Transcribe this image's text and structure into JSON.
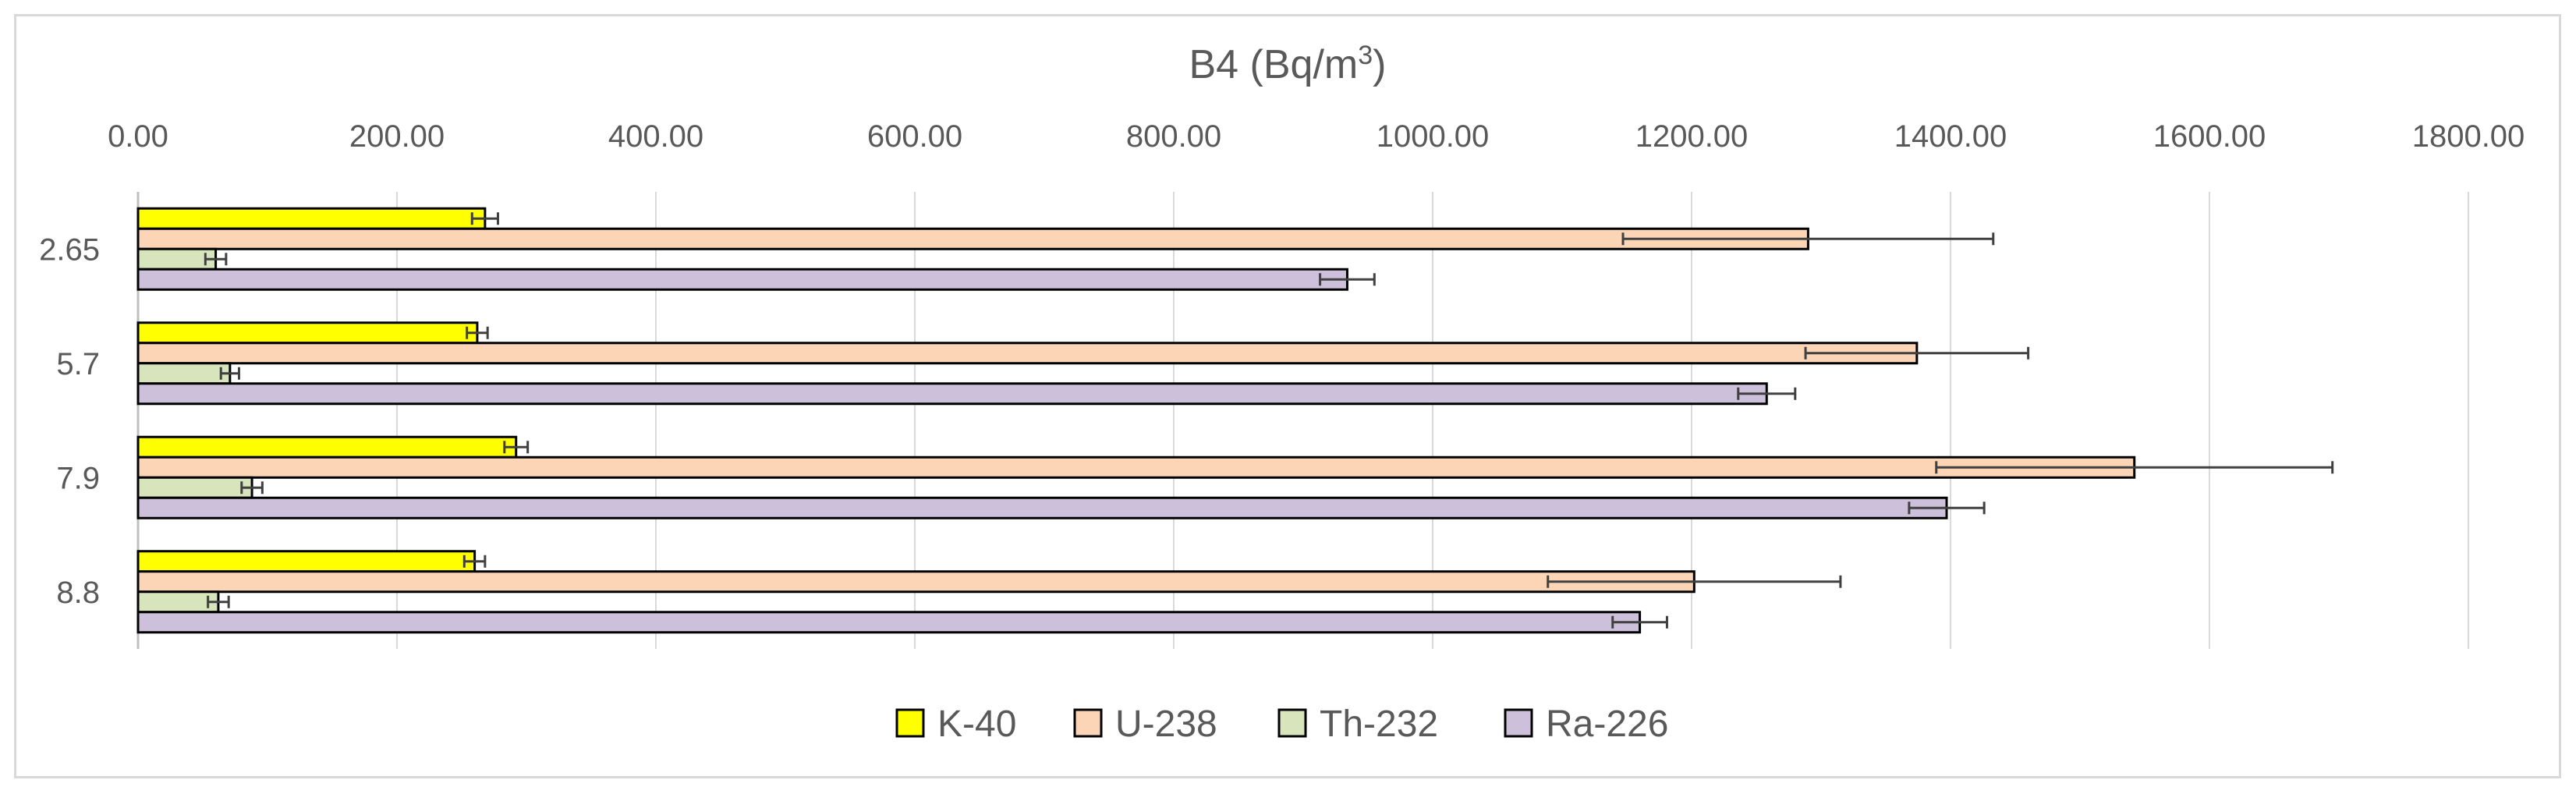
{
  "chart_data": {
    "type": "bar",
    "orientation": "horizontal",
    "title": "B4 (Bq/m",
    "title_superscript": "3",
    "title_suffix": ")",
    "categories": [
      "2.65",
      "5.7",
      "7.9",
      "8.8"
    ],
    "xlim": [
      0,
      1800
    ],
    "x_ticks": [
      "0.00",
      "200.00",
      "400.00",
      "600.00",
      "800.00",
      "1000.00",
      "1200.00",
      "1400.00",
      "1600.00",
      "1800.00"
    ],
    "x_axis_position": "top",
    "grid": true,
    "legend_position": "bottom",
    "series": [
      {
        "name": "K-40",
        "color": "#ffff00",
        "values": [
          268,
          262,
          292,
          260
        ],
        "errors": [
          10,
          8,
          9,
          8
        ]
      },
      {
        "name": "U-238",
        "color": "#fbd5b5",
        "values": [
          1290,
          1374,
          1542,
          1202
        ],
        "errors": [
          143,
          86,
          153,
          113
        ]
      },
      {
        "name": "Th-232",
        "color": "#d7e4bc",
        "values": [
          60,
          71,
          88,
          62
        ],
        "errors": [
          8,
          7,
          8,
          8
        ]
      },
      {
        "name": "Ra-226",
        "color": "#ccc0da",
        "values": [
          934,
          1258,
          1397,
          1160
        ],
        "errors": [
          21,
          22,
          29,
          21
        ]
      }
    ]
  }
}
